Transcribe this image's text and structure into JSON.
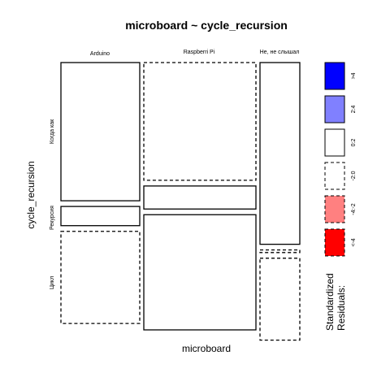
{
  "chart_data": {
    "type": "mosaic",
    "title": "microboard ~ cycle_recursion",
    "xlabel": "microboard",
    "ylabel": "cycle_recursion",
    "columns": [
      "Arduino",
      "Raspberri Pi",
      "Не, не слышал"
    ],
    "rows": [
      "Когда как",
      "Рекурсия",
      "Цикл"
    ],
    "column_proportions": [
      0.3,
      0.43,
      0.15
    ],
    "cell_proportions": [
      [
        0.54,
        0.075,
        0.36
      ],
      [
        0.46,
        0.09,
        0.45
      ],
      [
        0.71,
        0.01,
        0.32
      ]
    ],
    "cell_residual_class": [
      [
        "0:2",
        "0:2",
        "-2:0"
      ],
      [
        "-2:0",
        "0:2",
        "0:2"
      ],
      [
        "0:2",
        "-2:0",
        "-2:0"
      ]
    ],
    "legend": {
      "title_line1": "Standardized",
      "title_line2": "Residuals:",
      "items": [
        {
          "label": ">4",
          "fill": "#0000ff",
          "border": "solid"
        },
        {
          "label": "2:4",
          "fill": "#8080ff",
          "border": "solid"
        },
        {
          "label": "0:2",
          "fill": "#ffffff",
          "border": "solid"
        },
        {
          "label": "-2:0",
          "fill": "#ffffff",
          "border": "dashed"
        },
        {
          "label": "-4:-2",
          "fill": "#ff8080",
          "border": "dashed"
        },
        {
          "label": "<-4",
          "fill": "#ff0000",
          "border": "dashed"
        }
      ]
    }
  }
}
